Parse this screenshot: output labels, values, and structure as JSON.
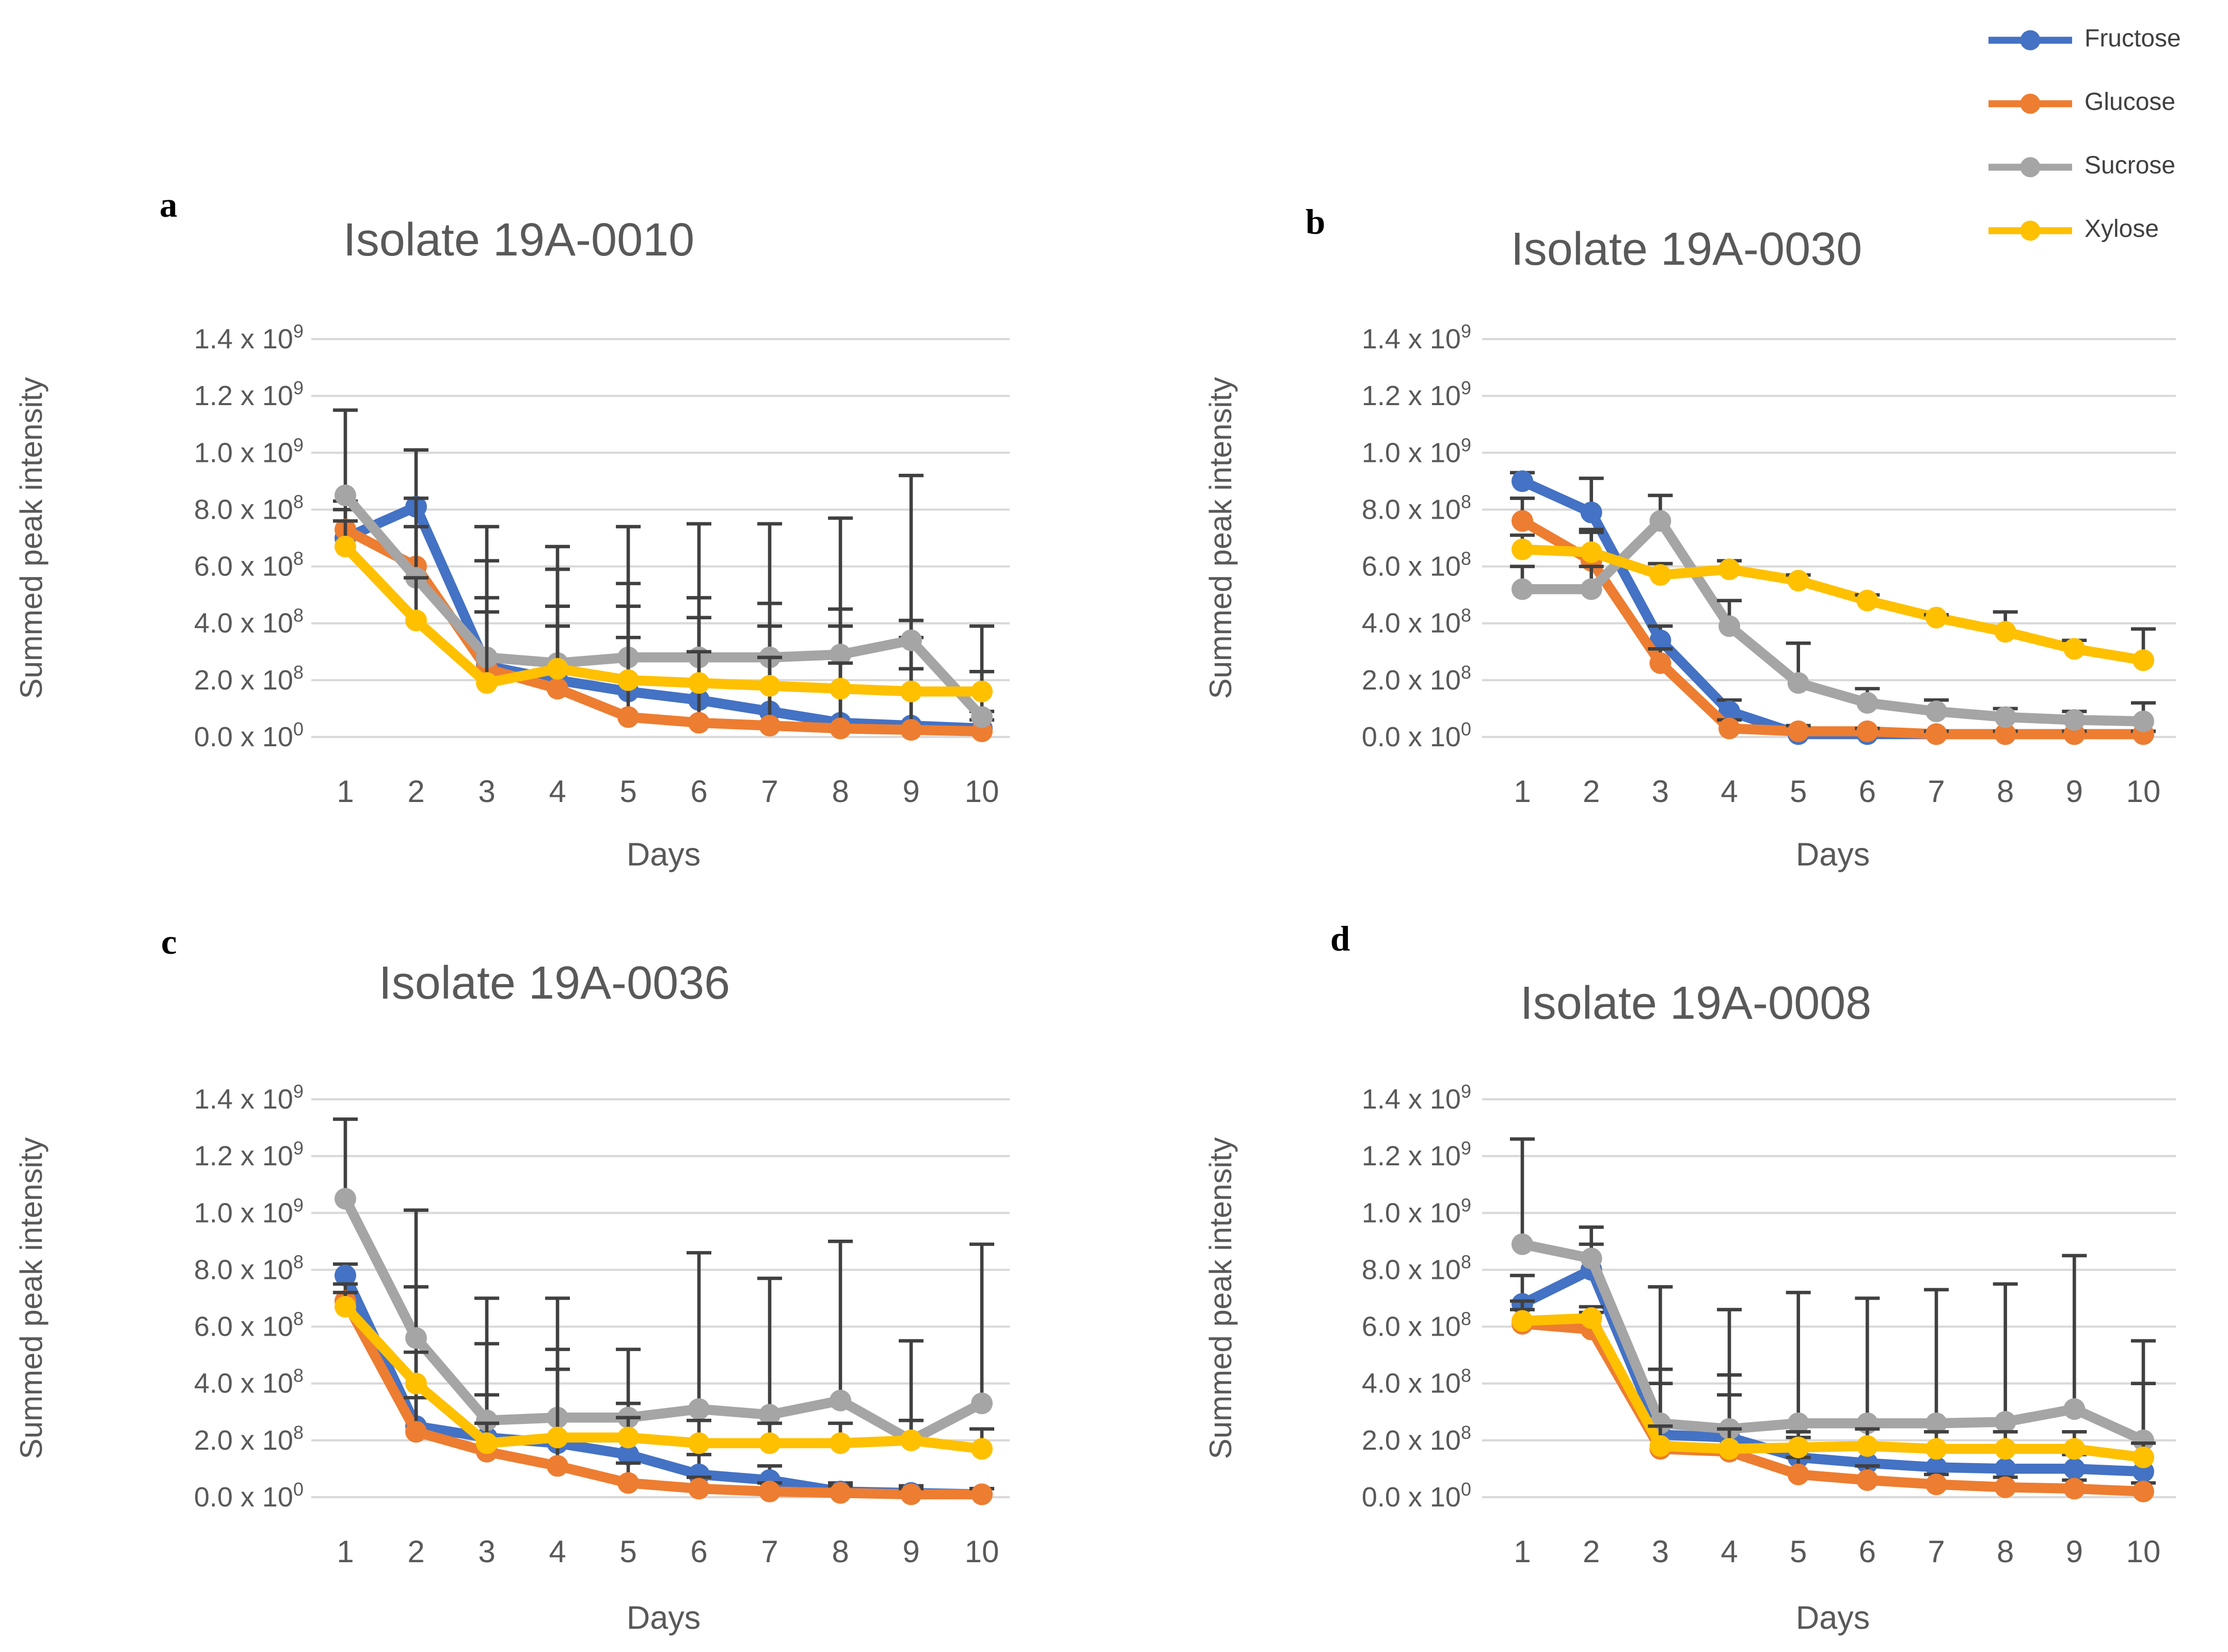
{
  "figure": {
    "background": "#ffffff"
  },
  "legend": {
    "position": "top-right",
    "items": [
      {
        "label": "Fructose",
        "color": "#4472C4"
      },
      {
        "label": "Glucose",
        "color": "#ED7D31"
      },
      {
        "label": "Sucrose",
        "color": "#A5A5A5"
      },
      {
        "label": "Xylose",
        "color": "#FFC000"
      }
    ]
  },
  "axes": {
    "ylabel": "Summed peak intensity",
    "xlabel": "Days",
    "x_ticks": [
      "1",
      "2",
      "3",
      "4",
      "5",
      "6",
      "7",
      "8",
      "9",
      "10"
    ],
    "y_ticks": [
      {
        "coef": "0.0",
        "exp": "0",
        "value": 0
      },
      {
        "coef": "2.0",
        "exp": "8",
        "value": 200000000.0
      },
      {
        "coef": "4.0",
        "exp": "8",
        "value": 400000000.0
      },
      {
        "coef": "6.0",
        "exp": "8",
        "value": 600000000.0
      },
      {
        "coef": "8.0",
        "exp": "8",
        "value": 800000000.0
      },
      {
        "coef": "1.0",
        "exp": "9",
        "value": 1000000000.0
      },
      {
        "coef": "1.2",
        "exp": "9",
        "value": 1200000000.0
      },
      {
        "coef": "1.4",
        "exp": "9",
        "value": 1400000000.0
      }
    ],
    "ylim": [
      0,
      1400000000.0
    ],
    "grid": true,
    "legend_position": "outside-top-right"
  },
  "style": {
    "error_bar_color": "#404040",
    "gridline_color": "#D9D9D9",
    "text_color": "#595959",
    "title_color": "#595959"
  },
  "chart_data": [
    {
      "id": "a",
      "letter": "a",
      "title": "Isolate 19A-0010",
      "type": "line",
      "x": [
        1,
        2,
        3,
        4,
        5,
        6,
        7,
        8,
        9,
        10
      ],
      "series": [
        {
          "name": "Fructose",
          "color": "#4472C4",
          "values": [
            700000000.0,
            810000000.0,
            250000000.0,
            200000000.0,
            160000000.0,
            130000000.0,
            90000000.0,
            50000000.0,
            40000000.0,
            30000000.0
          ],
          "upper": [
            800000000.0,
            1010000000.0,
            620000000.0,
            460000000.0,
            540000000.0,
            490000000.0,
            470000000.0,
            450000000.0,
            410000000.0,
            90000000.0
          ]
        },
        {
          "name": "Glucose",
          "color": "#ED7D31",
          "values": [
            730000000.0,
            600000000.0,
            240000000.0,
            170000000.0,
            70000000.0,
            50000000.0,
            40000000.0,
            30000000.0,
            25000000.0,
            20000000.0
          ],
          "upper": [
            830000000.0,
            740000000.0,
            440000000.0,
            390000000.0,
            460000000.0,
            420000000.0,
            390000000.0,
            390000000.0,
            350000000.0,
            60000000.0
          ]
        },
        {
          "name": "Sucrose",
          "color": "#A5A5A5",
          "values": [
            850000000.0,
            560000000.0,
            280000000.0,
            260000000.0,
            280000000.0,
            280000000.0,
            280000000.0,
            290000000.0,
            340000000.0,
            70000000.0
          ],
          "upper": [
            1150000000.0,
            840000000.0,
            740000000.0,
            670000000.0,
            740000000.0,
            750000000.0,
            750000000.0,
            770000000.0,
            920000000.0,
            390000000.0
          ]
        },
        {
          "name": "Xylose",
          "color": "#FFC000",
          "values": [
            670000000.0,
            410000000.0,
            190000000.0,
            240000000.0,
            200000000.0,
            190000000.0,
            180000000.0,
            170000000.0,
            160000000.0,
            160000000.0
          ],
          "upper": [
            760000000.0,
            560000000.0,
            490000000.0,
            590000000.0,
            350000000.0,
            300000000.0,
            280000000.0,
            260000000.0,
            240000000.0,
            230000000.0
          ]
        }
      ]
    },
    {
      "id": "b",
      "letter": "b",
      "title": "Isolate 19A-0030",
      "type": "line",
      "x": [
        1,
        2,
        3,
        4,
        5,
        6,
        7,
        8,
        9,
        10
      ],
      "series": [
        {
          "name": "Fructose",
          "color": "#4472C4",
          "values": [
            900000000.0,
            790000000.0,
            340000000.0,
            90000000.0,
            10000000.0,
            10000000.0,
            10000000.0,
            10000000.0,
            10000000.0,
            10000000.0
          ],
          "upper": [
            930000000.0,
            910000000.0,
            390000000.0,
            130000000.0,
            30000000.0,
            20000000.0,
            20000000.0,
            20000000.0,
            20000000.0,
            20000000.0
          ]
        },
        {
          "name": "Glucose",
          "color": "#ED7D31",
          "values": [
            760000000.0,
            620000000.0,
            260000000.0,
            30000000.0,
            20000000.0,
            20000000.0,
            10000000.0,
            10000000.0,
            10000000.0,
            10000000.0
          ],
          "upper": [
            840000000.0,
            730000000.0,
            310000000.0,
            60000000.0,
            40000000.0,
            30000000.0,
            20000000.0,
            20000000.0,
            20000000.0,
            20000000.0
          ]
        },
        {
          "name": "Sucrose",
          "color": "#A5A5A5",
          "values": [
            520000000.0,
            520000000.0,
            760000000.0,
            390000000.0,
            190000000.0,
            120000000.0,
            90000000.0,
            70000000.0,
            60000000.0,
            55000000.0
          ],
          "upper": [
            600000000.0,
            600000000.0,
            850000000.0,
            480000000.0,
            330000000.0,
            170000000.0,
            130000000.0,
            100000000.0,
            90000000.0,
            120000000.0
          ]
        },
        {
          "name": "Xylose",
          "color": "#FFC000",
          "values": [
            660000000.0,
            650000000.0,
            570000000.0,
            590000000.0,
            550000000.0,
            480000000.0,
            420000000.0,
            370000000.0,
            310000000.0,
            270000000.0
          ],
          "upper": [
            710000000.0,
            720000000.0,
            610000000.0,
            620000000.0,
            570000000.0,
            500000000.0,
            430000000.0,
            440000000.0,
            340000000.0,
            380000000.0
          ]
        }
      ]
    },
    {
      "id": "c",
      "letter": "c",
      "title": "Isolate 19A-0036",
      "type": "line",
      "x": [
        1,
        2,
        3,
        4,
        5,
        6,
        7,
        8,
        9,
        10
      ],
      "series": [
        {
          "name": "Fructose",
          "color": "#4472C4",
          "values": [
            780000000.0,
            250000000.0,
            210000000.0,
            190000000.0,
            150000000.0,
            80000000.0,
            60000000.0,
            20000000.0,
            15000000.0,
            10000000.0
          ],
          "upper": [
            820000000.0,
            740000000.0,
            540000000.0,
            520000000.0,
            330000000.0,
            150000000.0,
            110000000.0,
            50000000.0,
            40000000.0,
            30000000.0
          ]
        },
        {
          "name": "Glucose",
          "color": "#ED7D31",
          "values": [
            690000000.0,
            230000000.0,
            160000000.0,
            110000000.0,
            50000000.0,
            30000000.0,
            20000000.0,
            15000000.0,
            10000000.0,
            10000000.0
          ],
          "upper": [
            750000000.0,
            350000000.0,
            360000000.0,
            200000000.0,
            120000000.0,
            70000000.0,
            50000000.0,
            40000000.0,
            30000000.0,
            30000000.0
          ]
        },
        {
          "name": "Sucrose",
          "color": "#A5A5A5",
          "values": [
            1050000000.0,
            560000000.0,
            270000000.0,
            280000000.0,
            280000000.0,
            310000000.0,
            290000000.0,
            340000000.0,
            200000000.0,
            330000000.0
          ],
          "upper": [
            1330000000.0,
            1010000000.0,
            700000000.0,
            700000000.0,
            520000000.0,
            860000000.0,
            770000000.0,
            900000000.0,
            550000000.0,
            890000000.0
          ]
        },
        {
          "name": "Xylose",
          "color": "#FFC000",
          "values": [
            670000000.0,
            400000000.0,
            190000000.0,
            210000000.0,
            210000000.0,
            190000000.0,
            190000000.0,
            190000000.0,
            200000000.0,
            170000000.0
          ],
          "upper": [
            720000000.0,
            510000000.0,
            260000000.0,
            450000000.0,
            280000000.0,
            270000000.0,
            260000000.0,
            260000000.0,
            270000000.0,
            240000000.0
          ]
        }
      ]
    },
    {
      "id": "d",
      "letter": "d",
      "title": "Isolate 19A-0008",
      "type": "line",
      "x": [
        1,
        2,
        3,
        4,
        5,
        6,
        7,
        8,
        9,
        10
      ],
      "series": [
        {
          "name": "Fructose",
          "color": "#4472C4",
          "values": [
            680000000.0,
            800000000.0,
            220000000.0,
            210000000.0,
            140000000.0,
            120000000.0,
            105000000.0,
            100000000.0,
            100000000.0,
            90000000.0
          ],
          "upper": [
            780000000.0,
            890000000.0,
            450000000.0,
            430000000.0,
            210000000.0,
            180000000.0,
            160000000.0,
            160000000.0,
            150000000.0,
            400000000.0
          ]
        },
        {
          "name": "Glucose",
          "color": "#ED7D31",
          "values": [
            610000000.0,
            590000000.0,
            170000000.0,
            160000000.0,
            80000000.0,
            60000000.0,
            45000000.0,
            35000000.0,
            30000000.0,
            20000000.0
          ],
          "upper": [
            690000000.0,
            650000000.0,
            400000000.0,
            360000000.0,
            140000000.0,
            110000000.0,
            80000000.0,
            70000000.0,
            60000000.0,
            50000000.0
          ]
        },
        {
          "name": "Sucrose",
          "color": "#A5A5A5",
          "values": [
            890000000.0,
            840000000.0,
            260000000.0,
            240000000.0,
            260000000.0,
            260000000.0,
            260000000.0,
            265000000.0,
            310000000.0,
            200000000.0
          ],
          "upper": [
            1260000000.0,
            950000000.0,
            740000000.0,
            660000000.0,
            720000000.0,
            700000000.0,
            730000000.0,
            750000000.0,
            850000000.0,
            550000000.0
          ]
        },
        {
          "name": "Xylose",
          "color": "#FFC000",
          "values": [
            620000000.0,
            630000000.0,
            180000000.0,
            170000000.0,
            175000000.0,
            180000000.0,
            170000000.0,
            170000000.0,
            170000000.0,
            140000000.0
          ],
          "upper": [
            660000000.0,
            670000000.0,
            250000000.0,
            240000000.0,
            230000000.0,
            240000000.0,
            230000000.0,
            230000000.0,
            230000000.0,
            190000000.0
          ]
        }
      ]
    }
  ]
}
